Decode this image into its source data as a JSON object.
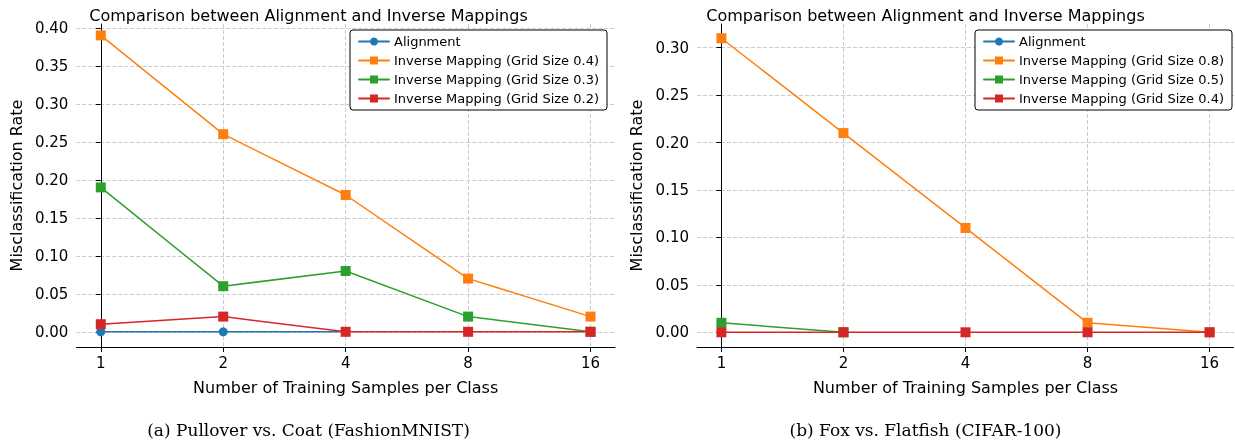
{
  "chart_data": [
    {
      "type": "line",
      "title": "Comparison between Alignment and Inverse Mappings",
      "xlabel": "Number of Training Samples per Class",
      "ylabel": "Misclassification Rate",
      "categories": [
        "1",
        "2",
        "4",
        "8",
        "16"
      ],
      "ylim": [
        -0.02,
        0.405
      ],
      "yticks": [
        {
          "value": 0,
          "label": "0.00"
        },
        {
          "value": 0.05,
          "label": "0.05"
        },
        {
          "value": 0.1,
          "label": "0.10"
        },
        {
          "value": 0.15,
          "label": "0.15"
        },
        {
          "value": 0.2,
          "label": "0.20"
        },
        {
          "value": 0.25,
          "label": "0.25"
        },
        {
          "value": 0.3,
          "label": "0.30"
        },
        {
          "value": 0.35,
          "label": "0.35"
        },
        {
          "value": 0.4,
          "label": "0.40"
        }
      ],
      "grid": true,
      "legend": "top right",
      "marker": "square",
      "line_style": "solid",
      "annotations": [
        "(a) Pullover vs. Coat (FashionMNIST)"
      ],
      "series": [
        {
          "name": "Alignment",
          "color": "#1f77b4",
          "marker": "circle",
          "values": [
            0,
            0,
            0,
            null,
            null
          ]
        },
        {
          "name": "Inverse Mapping (Grid Size 0.4)",
          "color": "#ff7f0e",
          "values": [
            0.39,
            0.26,
            0.18,
            0.07,
            0.02
          ]
        },
        {
          "name": "Inverse Mapping (Grid Size 0.3)",
          "color": "#2ca02c",
          "values": [
            0.19,
            0.06,
            0.08,
            0.02,
            0
          ]
        },
        {
          "name": "Inverse Mapping (Grid Size 0.2)",
          "color": "#d62728",
          "values": [
            0.01,
            0.02,
            0,
            0,
            0
          ]
        }
      ]
    },
    {
      "type": "line",
      "title": "Comparison between Alignment and Inverse Mappings",
      "xlabel": "Number of Training Samples per Class",
      "ylabel": "Misclassification Rate",
      "categories": [
        "1",
        "2",
        "4",
        "8",
        "16"
      ],
      "ylim": [
        -0.0155,
        0.325
      ],
      "yticks": [
        {
          "value": 0,
          "label": "0.00"
        },
        {
          "value": 0.05,
          "label": "0.05"
        },
        {
          "value": 0.1,
          "label": "0.10"
        },
        {
          "value": 0.15,
          "label": "0.15"
        },
        {
          "value": 0.2,
          "label": "0.20"
        },
        {
          "value": 0.25,
          "label": "0.25"
        },
        {
          "value": 0.3,
          "label": "0.30"
        }
      ],
      "grid": true,
      "legend": "top right",
      "marker": "square",
      "line_style": "solid",
      "annotations": [
        "(b) Fox vs. Flatfish (CIFAR-100)"
      ],
      "series": [
        {
          "name": "Alignment",
          "color": "#1f77b4",
          "marker": "circle",
          "values": [
            null,
            null,
            null,
            null,
            null
          ]
        },
        {
          "name": "Inverse Mapping (Grid Size 0.8)",
          "color": "#ff7f0e",
          "values": [
            0.31,
            0.21,
            0.11,
            0.01,
            0
          ]
        },
        {
          "name": "Inverse Mapping (Grid Size 0.5)",
          "color": "#2ca02c",
          "values": [
            0.01,
            0,
            null,
            null,
            null
          ]
        },
        {
          "name": "Inverse Mapping (Grid Size 0.4)",
          "color": "#d62728",
          "values": [
            0,
            0,
            0,
            0,
            0
          ]
        }
      ]
    }
  ]
}
